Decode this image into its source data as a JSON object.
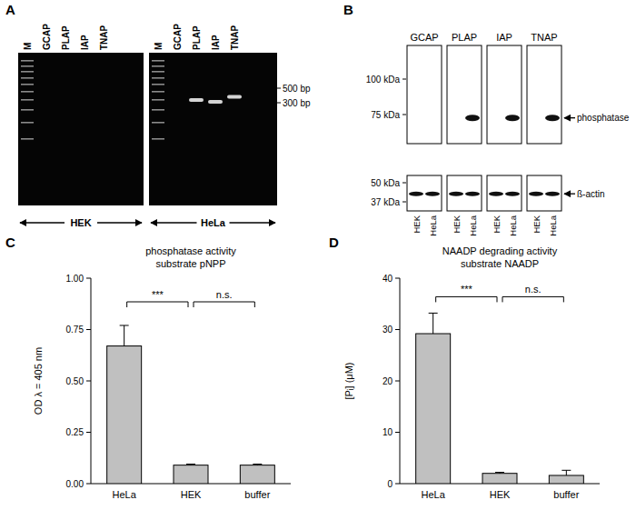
{
  "chart_data": [
    {
      "type": "bar",
      "panel_label": "C",
      "title": "phosphatase activity",
      "subtitle": "substrate pNPP",
      "y_label": "OD λ = 405 nm",
      "categories": [
        "HeLa",
        "HEK",
        "buffer"
      ],
      "values": [
        0.67,
        0.09,
        0.09
      ],
      "errors": [
        0.1,
        0.005,
        0.005
      ],
      "color": "#c0c0c0",
      "ylim": [
        0,
        1
      ],
      "yticks": [
        {
          "value": 0,
          "label": "0.00"
        },
        {
          "value": 0.25,
          "label": "0.25"
        },
        {
          "value": 0.5,
          "label": "0.50"
        },
        {
          "value": 0.75,
          "label": "0.75"
        },
        {
          "value": 1,
          "label": "1.00"
        }
      ],
      "annotations": [
        {
          "text": "***",
          "between": [
            "HeLa",
            "HEK"
          ]
        },
        {
          "text": "n.s.",
          "between": [
            "HEK",
            "buffer"
          ]
        }
      ]
    },
    {
      "type": "bar",
      "panel_label": "D",
      "title": "NAADP degrading activity",
      "subtitle": "substrate NAADP",
      "y_label": "[Pᵢ] (μM)",
      "categories": [
        "HeLa",
        "HEK",
        "buffer"
      ],
      "values": [
        29.2,
        2.0,
        1.6
      ],
      "errors": [
        4.0,
        0.2,
        1.0
      ],
      "color": "#c0c0c0",
      "ylim": [
        0,
        40
      ],
      "yticks": [
        0,
        10,
        20,
        30,
        40
      ],
      "annotations": [
        {
          "text": "***",
          "between": [
            "HeLa",
            "HEK"
          ]
        },
        {
          "text": "n.s.",
          "between": [
            "HEK",
            "buffer"
          ]
        }
      ]
    }
  ],
  "gel": {
    "panel_label": "A",
    "lanes": [
      "M",
      "GCAP",
      "PLAP",
      "IAP",
      "TNAP"
    ],
    "size_markers": [
      {
        "value": 500,
        "label": "500 bp"
      },
      {
        "value": 300,
        "label": "300 bp"
      }
    ],
    "groups": [
      {
        "name": "HEK",
        "band_bp": [
          null,
          null,
          null,
          null,
          null
        ]
      },
      {
        "name": "HeLa",
        "band_bp": [
          null,
          null,
          330,
          310,
          370
        ]
      }
    ]
  },
  "blot": {
    "panel_label": "B",
    "proteins": [
      "GCAP",
      "PLAP",
      "IAP",
      "TNAP"
    ],
    "samples": [
      "HEK",
      "HeLa"
    ],
    "mw_markers": [
      {
        "value": 100,
        "label": "100 kDa"
      },
      {
        "value": 75,
        "label": "75 kDa"
      },
      {
        "value": 50,
        "label": "50 kDa"
      },
      {
        "value": 37,
        "label": "37 kDa"
      }
    ],
    "target": {
      "name": "phosphatase",
      "kda": 73,
      "detected": [
        [
          false,
          false
        ],
        [
          false,
          true
        ],
        [
          false,
          true
        ],
        [
          false,
          true
        ]
      ]
    },
    "loading_control": {
      "name": "ß-actin",
      "kda": 42,
      "detected": [
        [
          true,
          true
        ],
        [
          true,
          true
        ],
        [
          true,
          true
        ],
        [
          true,
          true
        ]
      ]
    }
  }
}
